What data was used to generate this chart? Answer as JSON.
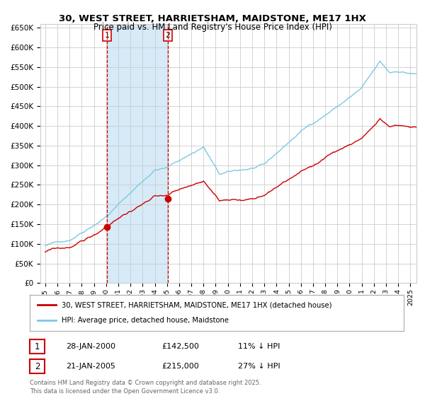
{
  "title": "30, WEST STREET, HARRIETSHAM, MAIDSTONE, ME17 1HX",
  "subtitle": "Price paid vs. HM Land Registry's House Price Index (HPI)",
  "hpi_label": "HPI: Average price, detached house, Maidstone",
  "price_label": "30, WEST STREET, HARRIETSHAM, MAIDSTONE, ME17 1HX (detached house)",
  "legend_footer": "Contains HM Land Registry data © Crown copyright and database right 2025.\nThis data is licensed under the Open Government Licence v3.0.",
  "sale1_date": "28-JAN-2000",
  "sale1_price": 142500,
  "sale1_label": "£142,500",
  "sale1_hpi_pct": "11% ↓ HPI",
  "sale1_x": 2000.07,
  "sale1_y": 142500,
  "sale2_date": "21-JAN-2005",
  "sale2_price": 215000,
  "sale2_label": "£215,000",
  "sale2_hpi_pct": "27% ↓ HPI",
  "sale2_x": 2005.07,
  "sale2_y": 215000,
  "ylim": [
    0,
    660000
  ],
  "ytick_interval": 50000,
  "xlim_start": 1994.6,
  "xlim_end": 2025.5,
  "hpi_color": "#7ec8e3",
  "price_color": "#cc0000",
  "vline_color": "#cc0000",
  "shade_color": "#d6eaf8",
  "grid_color": "#cccccc",
  "plot_bg": "#ffffff",
  "fig_bg": "#ffffff"
}
